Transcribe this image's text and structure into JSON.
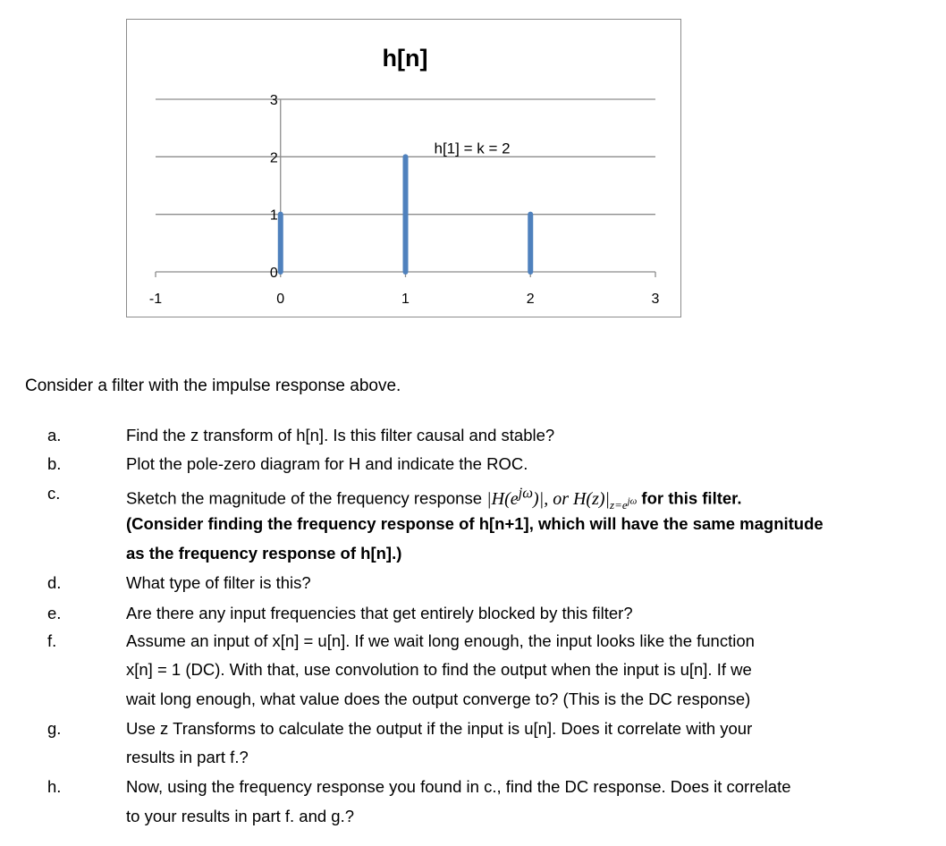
{
  "chart_data": {
    "type": "stem",
    "title": "h[n]",
    "x": [
      0,
      1,
      2
    ],
    "values": [
      1,
      2,
      1
    ],
    "xlim": [
      -1,
      3
    ],
    "ylim": [
      0,
      3
    ],
    "xticks": [
      "-1",
      "0",
      "1",
      "2",
      "3"
    ],
    "yticks": [
      "0",
      "1",
      "2",
      "3"
    ],
    "grid": true,
    "color": "#4f81bd",
    "annotation": {
      "text": "h[1] = k = 2",
      "x": 1,
      "y": 2
    }
  },
  "intro": "Consider a filter with the impulse response above.",
  "items": [
    {
      "letter": "a.",
      "lines": [
        "Find the z transform of h[n].  Is this filter causal and stable?"
      ]
    },
    {
      "letter": "b.",
      "lines": [
        "Plot the pole-zero diagram for H and indicate the ROC."
      ]
    },
    {
      "letter": "c.",
      "pre": "Sketch the magnitude of the frequency response ",
      "math": "|H(e^jω)|, or H(z)|z=e^jω",
      "math_main": "|H(e",
      "math_sup": "jω",
      "math_mid": ")|, or H(z)|",
      "math_sub": "z=e",
      "math_sub_sup": "jω",
      "post": " for this filter.",
      "bold_lines": [
        "(Consider finding the frequency response of h[n+1], which will have the same magnitude",
        "as the frequency response of h[n].)"
      ]
    },
    {
      "letter": "d.",
      "lines": [
        "What type of filter is this?"
      ]
    },
    {
      "letter": "e.",
      "lines": [
        "Are there any input frequencies that get entirely blocked by this filter?"
      ]
    },
    {
      "letter": "f.",
      "lines": [
        "Assume an input of x[n] = u[n]. If we wait long enough, the input looks like the function",
        "x[n] = 1 (DC).  With that, use convolution to find the output when the input is u[n].  If we",
        "wait long enough, what value does the output converge to?  (This is the DC response)"
      ]
    },
    {
      "letter": "g.",
      "lines": [
        "Use z Transforms to calculate the output if the input is u[n].  Does it correlate with your",
        "results in part f.?"
      ]
    },
    {
      "letter": "h.",
      "lines": [
        "Now, using the frequency response you found in c., find the DC response.  Does it correlate",
        "to your results in part f. and g.?"
      ]
    }
  ]
}
